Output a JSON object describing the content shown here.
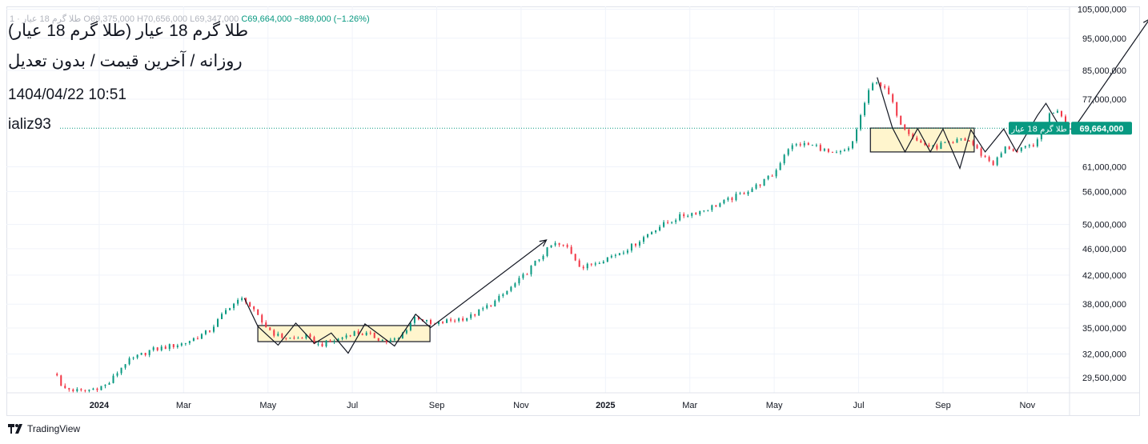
{
  "header": {
    "symbol_faded": "طلا گرم 18 عیار · 1",
    "ohlc_faded": "O69,375,000 H70,656,000 L69,347,000",
    "close": "C69,664,000",
    "change": "−889,000 (−1.26%)",
    "title": "طلا گرم 18 عیار (طلا گرم 18 عیار)",
    "subtitle": "روزانه / آخرین قیمت / بدون تعدیل",
    "date": "1404/04/22  10:51",
    "author": "ializ93"
  },
  "brand": {
    "name": "TradingView"
  },
  "colors": {
    "up": "#089981",
    "down": "#f23645",
    "box_fill": "#fff3c4",
    "price_label": "#089981"
  },
  "chart_data": {
    "type": "candlestick",
    "title": "طلا گرم 18 عیار",
    "scale": "log",
    "ylim": [
      28000000,
      106000000
    ],
    "x_range_months": [
      -1.1,
      11.5
    ],
    "x_tick_labels": [
      {
        "label": "2024",
        "t": 0
      },
      {
        "label": "Mar",
        "t": 1
      },
      {
        "label": "May",
        "t": 2
      },
      {
        "label": "Jul",
        "t": 3
      },
      {
        "label": "Sep",
        "t": 4
      },
      {
        "label": "Nov",
        "t": 5
      },
      {
        "label": "2025",
        "t": 6
      },
      {
        "label": "Mar",
        "t": 7
      },
      {
        "label": "May",
        "t": 8
      },
      {
        "label": "Jul",
        "t": 9
      },
      {
        "label": "Sep",
        "t": 10
      },
      {
        "label": "Nov",
        "t": 11
      }
    ],
    "y_ticks": [
      {
        "label": "105,000,000",
        "value": 105000000
      },
      {
        "label": "95,000,000",
        "value": 95000000
      },
      {
        "label": "85,000,000",
        "value": 85000000
      },
      {
        "label": "77,000,000",
        "value": 77000000
      },
      {
        "label": "61,000,000",
        "value": 61000000
      },
      {
        "label": "56,000,000",
        "value": 56000000
      },
      {
        "label": "50,000,000",
        "value": 50000000
      },
      {
        "label": "46,000,000",
        "value": 46000000
      },
      {
        "label": "42,000,000",
        "value": 42000000
      },
      {
        "label": "38,000,000",
        "value": 38000000
      },
      {
        "label": "35,000,000",
        "value": 35000000
      },
      {
        "label": "32,000,000",
        "value": 32000000
      },
      {
        "label": "29,500,000",
        "value": 29500000
      }
    ],
    "last_price": 69664000,
    "last_price_label": "69,664,000",
    "last_price_series_label": "طلا گرم 18 عیار",
    "price_path": [
      [
        -0.5,
        29900000
      ],
      [
        -0.45,
        28500000
      ],
      [
        -0.2,
        28100000
      ],
      [
        0.1,
        28800000
      ],
      [
        0.3,
        31000000
      ],
      [
        0.6,
        32400000
      ],
      [
        1.0,
        33200000
      ],
      [
        1.3,
        34600000
      ],
      [
        1.55,
        37800000
      ],
      [
        1.72,
        38800000
      ],
      [
        1.82,
        37200000
      ],
      [
        1.95,
        35400000
      ],
      [
        2.1,
        34100000
      ],
      [
        2.3,
        33700000
      ],
      [
        2.45,
        34000000
      ],
      [
        2.6,
        33000000
      ],
      [
        2.8,
        33500000
      ],
      [
        3.0,
        34500000
      ],
      [
        3.2,
        34200000
      ],
      [
        3.4,
        33400000
      ],
      [
        3.55,
        33700000
      ],
      [
        3.75,
        36500000
      ],
      [
        3.95,
        35300000
      ],
      [
        4.1,
        35800000
      ],
      [
        4.4,
        36400000
      ],
      [
        4.7,
        38400000
      ],
      [
        5.0,
        41500000
      ],
      [
        5.2,
        44300000
      ],
      [
        5.38,
        46800000
      ],
      [
        5.55,
        46200000
      ],
      [
        5.72,
        43000000
      ],
      [
        5.9,
        44000000
      ],
      [
        6.1,
        45000000
      ],
      [
        6.3,
        46300000
      ],
      [
        6.6,
        49400000
      ],
      [
        6.9,
        51500000
      ],
      [
        7.15,
        52500000
      ],
      [
        7.4,
        54000000
      ],
      [
        7.6,
        55500000
      ],
      [
        7.8,
        57200000
      ],
      [
        8.0,
        59500000
      ],
      [
        8.15,
        65000000
      ],
      [
        8.3,
        66000000
      ],
      [
        8.5,
        65500000
      ],
      [
        8.7,
        63500000
      ],
      [
        8.9,
        64800000
      ],
      [
        9.1,
        78000000
      ],
      [
        9.2,
        82500000
      ],
      [
        9.35,
        78500000
      ],
      [
        9.5,
        71000000
      ],
      [
        9.7,
        66500000
      ],
      [
        9.9,
        65000000
      ],
      [
        10.0,
        66200000
      ],
      [
        10.1,
        65600000
      ],
      [
        10.2,
        67200000
      ],
      [
        10.32,
        66600000
      ],
      [
        10.45,
        63700000
      ],
      [
        10.6,
        61600000
      ],
      [
        10.75,
        65400000
      ],
      [
        10.88,
        64300000
      ],
      [
        11.0,
        65200000
      ],
      [
        11.12,
        66500000
      ],
      [
        11.25,
        72800000
      ],
      [
        11.35,
        74600000
      ],
      [
        11.45,
        71500000
      ],
      [
        11.55,
        69664000
      ]
    ],
    "zones": [
      {
        "name": "2024 consolidation",
        "t0": 1.88,
        "t1": 3.92,
        "low": 33400000,
        "high": 35300000
      },
      {
        "name": "2025 consolidation",
        "t0": 9.14,
        "t1": 10.37,
        "low": 64200000,
        "high": 69700000
      }
    ],
    "patterns": [
      {
        "name": "2024 zigzag",
        "points": [
          [
            1.72,
            38800000
          ],
          [
            1.88,
            35200000
          ],
          [
            2.12,
            33000000
          ],
          [
            2.33,
            35600000
          ],
          [
            2.55,
            33200000
          ],
          [
            2.75,
            34400000
          ],
          [
            2.95,
            32100000
          ],
          [
            3.15,
            35500000
          ],
          [
            3.5,
            32900000
          ],
          [
            3.75,
            36700000
          ],
          [
            3.92,
            35100000
          ]
        ]
      },
      {
        "name": "2025 zigzag",
        "points": [
          [
            9.22,
            83000000
          ],
          [
            9.4,
            69800000
          ],
          [
            9.55,
            64200000
          ],
          [
            9.7,
            69600000
          ],
          [
            9.85,
            64200000
          ],
          [
            10.0,
            69500000
          ],
          [
            10.2,
            60700000
          ],
          [
            10.33,
            69300000
          ],
          [
            10.5,
            64200000
          ],
          [
            10.72,
            69500000
          ],
          [
            10.87,
            64300000
          ],
          [
            11.12,
            72800000
          ],
          [
            11.22,
            75900000
          ],
          [
            11.4,
            69500000
          ],
          [
            11.55,
            69500000
          ]
        ]
      }
    ],
    "arrows": [
      {
        "name": "first target",
        "from": [
          3.92,
          35000000
        ],
        "to": [
          5.3,
          47400000
        ]
      },
      {
        "name": "second target",
        "from": [
          11.55,
          69600000
        ],
        "to": [
          12.45,
          101500000
        ]
      }
    ]
  }
}
